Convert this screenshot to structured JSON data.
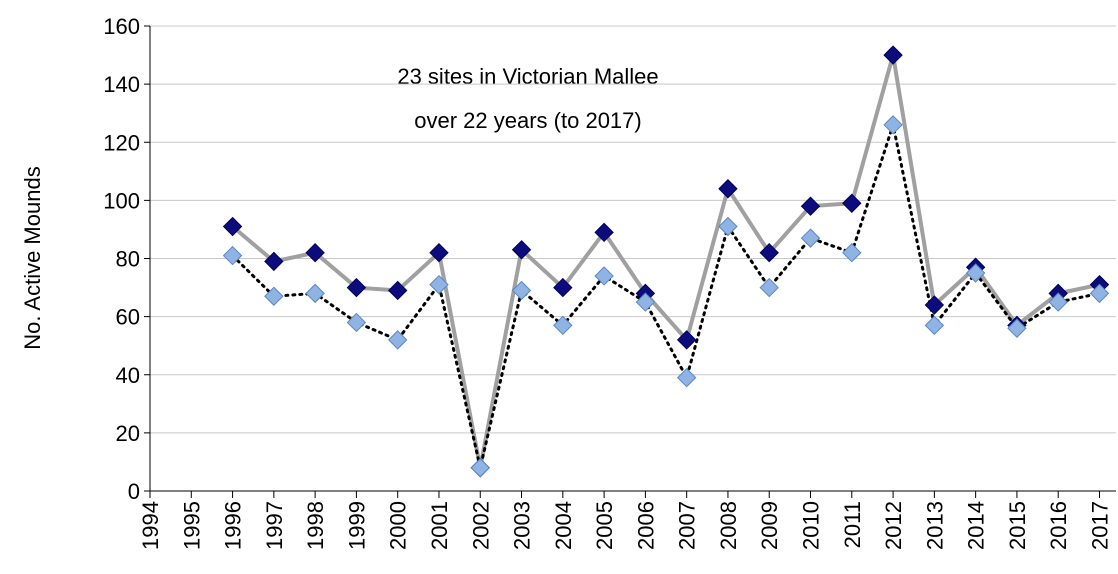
{
  "chart_data": {
    "type": "line",
    "annotations": [
      "23 sites in Victorian Mallee",
      "over 22 years (to 2017)"
    ],
    "y_label": "No. Active Mounds",
    "x": [
      1996,
      1997,
      1998,
      1999,
      2000,
      2001,
      2002,
      2003,
      2004,
      2005,
      2006,
      2007,
      2008,
      2009,
      2010,
      2011,
      2012,
      2013,
      2014,
      2015,
      2016,
      2017
    ],
    "series": [
      {
        "color": "#0c0c7c",
        "line_color": "#a0a0a0",
        "line_style": "solid",
        "values": [
          91,
          79,
          82,
          70,
          69,
          82,
          8,
          83,
          70,
          89,
          68,
          52,
          104,
          82,
          98,
          99,
          150,
          64,
          77,
          57,
          68,
          71
        ]
      },
      {
        "color": "#8fb4e3",
        "line_color": "#000000",
        "line_style": "dotted",
        "values": [
          81,
          67,
          68,
          58,
          52,
          71,
          8,
          69,
          57,
          74,
          65,
          39,
          91,
          70,
          87,
          82,
          126,
          57,
          75,
          56,
          65,
          68
        ]
      }
    ],
    "xlim": [
      1994,
      2017.4
    ],
    "xticks": [
      1994,
      1995,
      1996,
      1997,
      1998,
      1999,
      2000,
      2001,
      2002,
      2003,
      2004,
      2005,
      2006,
      2007,
      2008,
      2009,
      2010,
      2011,
      2012,
      2013,
      2014,
      2015,
      2016,
      2017
    ],
    "ylim": [
      0,
      160
    ],
    "yticks": [
      0,
      20,
      40,
      60,
      80,
      100,
      120,
      140,
      160
    ],
    "grid": true
  }
}
